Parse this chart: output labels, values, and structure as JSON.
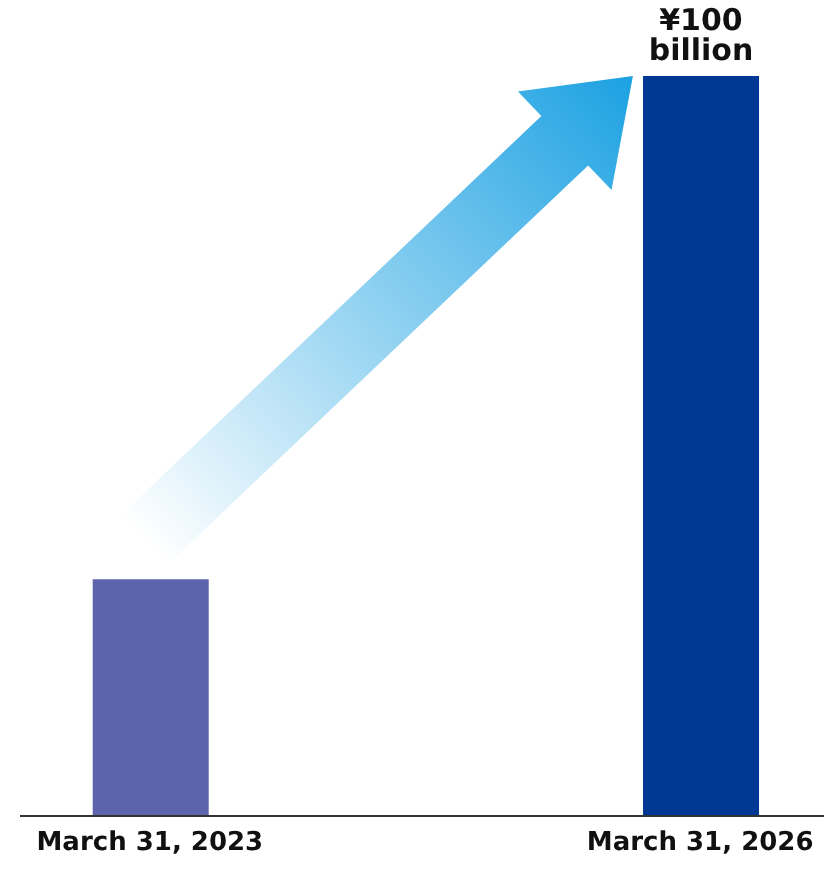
{
  "chart_data": {
    "type": "bar",
    "categories": [
      "March 31, 2023",
      "March 31, 2026"
    ],
    "values": [
      32,
      100
    ],
    "colors": [
      "#5c64ab",
      "#003893"
    ],
    "value_labels": [
      null,
      "¥100 billion"
    ],
    "grid": false,
    "legend": false
  }
}
